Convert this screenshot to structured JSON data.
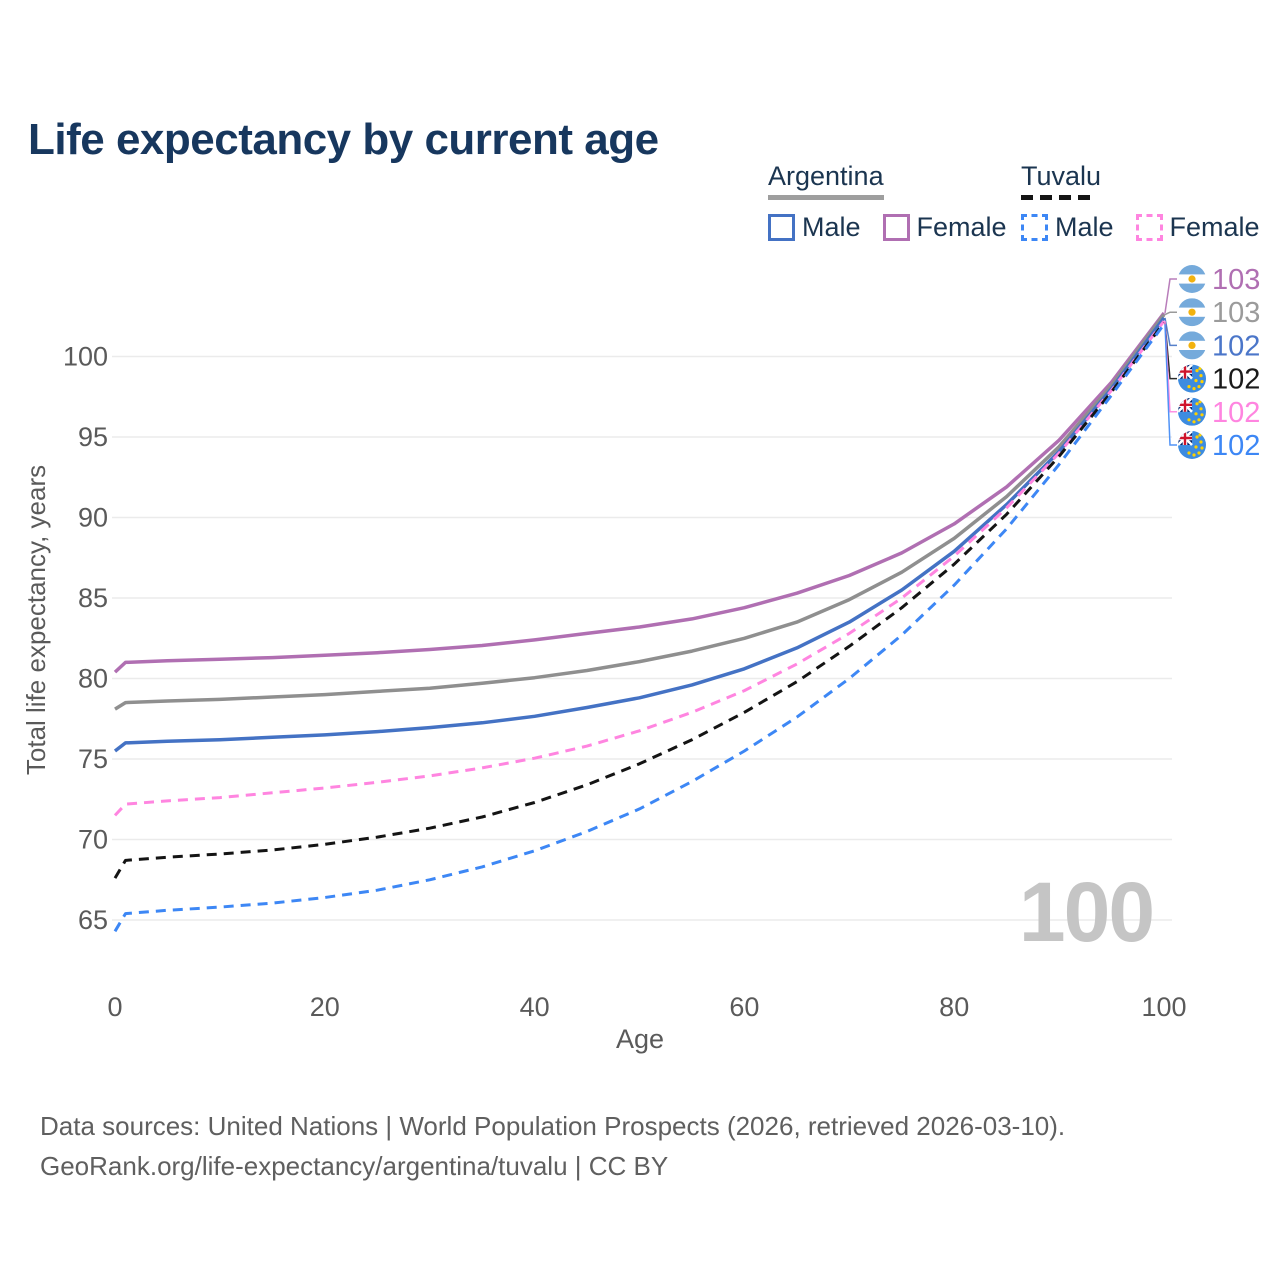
{
  "title": "Life expectancy by current age",
  "legend": {
    "groups": [
      {
        "label": "Argentina",
        "line_style": "solid",
        "underline_color": "#9e9e9e",
        "items": [
          {
            "label": "Male",
            "color": "#4472c4",
            "dashed": false
          },
          {
            "label": "Female",
            "color": "#b06fb2",
            "dashed": false
          }
        ]
      },
      {
        "label": "Tuvalu",
        "line_style": "dashed",
        "underline_color": "#141414",
        "items": [
          {
            "label": "Male",
            "color": "#3d87f5",
            "dashed": true
          },
          {
            "label": "Female",
            "color": "#ff85e0",
            "dashed": true
          }
        ]
      }
    ]
  },
  "chart_data": {
    "type": "line",
    "title": "Life expectancy by current age",
    "xlabel": "Age",
    "ylabel": "Total life expectancy, years",
    "xlim": [
      0,
      100
    ],
    "ylim": [
      63,
      104
    ],
    "xticks": [
      0,
      20,
      40,
      60,
      80,
      100
    ],
    "yticks": [
      65,
      70,
      75,
      80,
      85,
      90,
      95,
      100
    ],
    "grid": "horizontal",
    "legend_position": "top-right",
    "x": [
      0,
      1,
      5,
      10,
      15,
      20,
      25,
      30,
      35,
      40,
      45,
      50,
      55,
      60,
      65,
      70,
      75,
      80,
      85,
      90,
      95,
      100
    ],
    "series": [
      {
        "name": "Argentina Female",
        "country": "Argentina",
        "sex": "Female",
        "color": "#b06fb2",
        "dashed": false,
        "values": [
          80.4,
          81.0,
          81.1,
          81.2,
          81.3,
          81.45,
          81.6,
          81.8,
          82.05,
          82.4,
          82.8,
          83.2,
          83.7,
          84.4,
          85.3,
          86.4,
          87.8,
          89.6,
          91.9,
          94.8,
          98.4,
          102.7
        ]
      },
      {
        "name": "Argentina Total",
        "country": "Argentina",
        "sex": "Both",
        "color": "#8f8f8f",
        "dashed": false,
        "values": [
          78.1,
          78.5,
          78.6,
          78.7,
          78.85,
          79.0,
          79.2,
          79.4,
          79.7,
          80.05,
          80.5,
          81.05,
          81.7,
          82.5,
          83.5,
          84.9,
          86.6,
          88.7,
          91.3,
          94.4,
          98.2,
          102.6
        ]
      },
      {
        "name": "Argentina Male",
        "country": "Argentina",
        "sex": "Male",
        "color": "#4472c4",
        "dashed": false,
        "values": [
          75.5,
          76.0,
          76.1,
          76.2,
          76.35,
          76.5,
          76.7,
          76.95,
          77.25,
          77.65,
          78.2,
          78.8,
          79.6,
          80.6,
          81.9,
          83.5,
          85.5,
          87.9,
          90.8,
          94.1,
          98.0,
          102.4
        ]
      },
      {
        "name": "Tuvalu Female",
        "country": "Tuvalu",
        "sex": "Female",
        "color": "#ff85e0",
        "dashed": true,
        "values": [
          71.5,
          72.2,
          72.4,
          72.6,
          72.9,
          73.2,
          73.55,
          73.95,
          74.45,
          75.05,
          75.8,
          76.75,
          77.9,
          79.25,
          80.9,
          82.8,
          85.0,
          87.6,
          90.6,
          94.0,
          97.9,
          102.2
        ]
      },
      {
        "name": "Tuvalu Total",
        "country": "Tuvalu",
        "sex": "Both",
        "color": "#141414",
        "dashed": true,
        "values": [
          67.6,
          68.7,
          68.9,
          69.1,
          69.35,
          69.7,
          70.15,
          70.7,
          71.4,
          72.3,
          73.4,
          74.7,
          76.2,
          77.9,
          79.8,
          82.0,
          84.4,
          87.1,
          90.2,
          93.8,
          97.8,
          102.1
        ]
      },
      {
        "name": "Tuvalu Male",
        "country": "Tuvalu",
        "sex": "Male",
        "color": "#3d87f5",
        "dashed": true,
        "values": [
          64.3,
          65.4,
          65.6,
          65.8,
          66.05,
          66.4,
          66.85,
          67.5,
          68.3,
          69.3,
          70.5,
          71.9,
          73.6,
          75.5,
          77.6,
          80.0,
          82.7,
          85.8,
          89.3,
          93.3,
          97.6,
          102.0
        ]
      }
    ],
    "end_labels": [
      {
        "text": "103",
        "color": "#b06fb2",
        "flag": "argentina",
        "series_index": 0
      },
      {
        "text": "103",
        "color": "#9b9b9b",
        "flag": "argentina",
        "series_index": 1
      },
      {
        "text": "102",
        "color": "#4b76c9",
        "flag": "argentina",
        "series_index": 2
      },
      {
        "text": "102",
        "color": "#1a1a1a",
        "flag": "tuvalu",
        "series_index": 4
      },
      {
        "text": "102",
        "color": "#ff85e0",
        "flag": "tuvalu",
        "series_index": 3
      },
      {
        "text": "102",
        "color": "#3d87f5",
        "flag": "tuvalu",
        "series_index": 5
      }
    ]
  },
  "annotations": {
    "watermark": "100",
    "flag_icons": [
      "argentina-flag-icon",
      "tuvalu-flag-icon"
    ]
  },
  "colors": {
    "title_text": "#17375e",
    "axis_text": "#5a5a5a",
    "gridline": "#ebebeb",
    "watermark": "#c5c5c5",
    "footer_text": "#5f5f5f",
    "argentina_flag_blue": "#75aadb",
    "argentina_flag_sun": "#f2b20f",
    "tuvalu_flag_blue": "#3d8ce0",
    "tuvalu_flag_navy": "#012169",
    "tuvalu_flag_red": "#cf142b",
    "tuvalu_flag_star": "#ffd100"
  },
  "footer": {
    "line1": "Data sources: United Nations | World Population Prospects (2026, retrieved 2026-03-10).",
    "line2": "GeoRank.org/life-expectancy/argentina/tuvalu | CC BY"
  }
}
